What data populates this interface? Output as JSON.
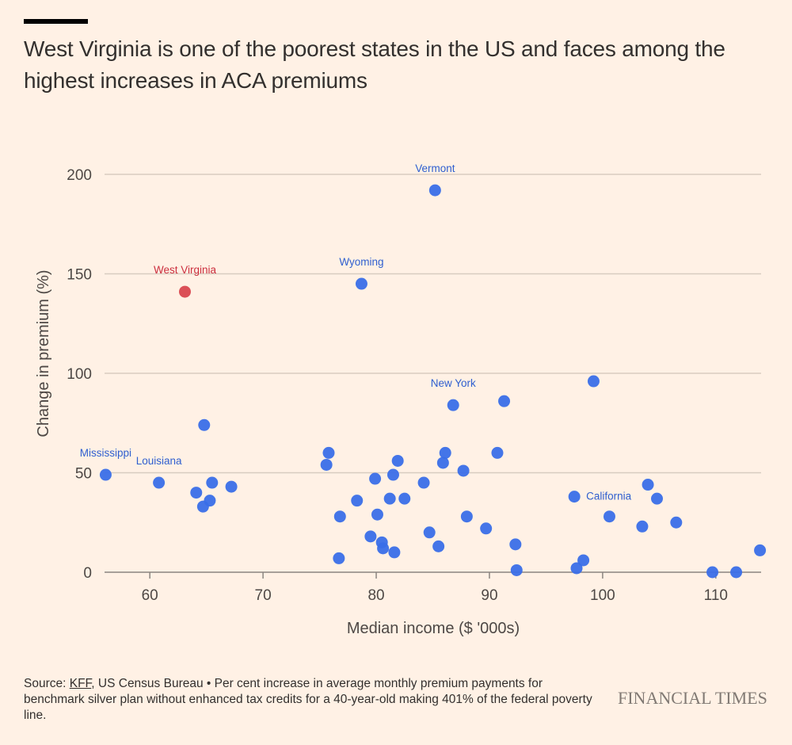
{
  "header": {
    "title": "West Virginia is one of the poorest states in the US and faces among the highest increases in ACA premiums"
  },
  "footer": {
    "source_prefix": "Source: ",
    "source_link": "KFF",
    "source_rest": ", US Census Bureau • Per cent increase in average monthly premium payments for benchmark silver plan without enhanced tax credits for a 40-year-old making 401% of the federal poverty line.",
    "logo": "FINANCIAL TIMES"
  },
  "colors": {
    "background": "#fff1e5",
    "point": "#3a6ee8",
    "highlight": "#d9474f",
    "label_blue": "#2f5fcf",
    "label_red": "#cc2f3e",
    "grid": "#d8ccc0",
    "axis": "#8a8580",
    "text": "#33302e"
  },
  "chart_data": {
    "type": "scatter",
    "title": "West Virginia is one of the poorest states in the US and faces among the highest increases in ACA premiums",
    "xlabel": "Median income ($ '000s)",
    "ylabel": "Change in premium (%)",
    "xlim": [
      56,
      114
    ],
    "ylim": [
      0,
      200
    ],
    "xticks": [
      60,
      70,
      80,
      90,
      100,
      110
    ],
    "yticks": [
      0,
      50,
      100,
      150,
      200
    ],
    "grid": "horizontal",
    "points": [
      {
        "x": 63.1,
        "y": 141,
        "label": "West Virginia",
        "highlight": true
      },
      {
        "x": 85.2,
        "y": 192,
        "label": "Vermont"
      },
      {
        "x": 78.7,
        "y": 145,
        "label": "Wyoming"
      },
      {
        "x": 86.8,
        "y": 84,
        "label": "New York"
      },
      {
        "x": 56.1,
        "y": 49,
        "label": "Mississippi"
      },
      {
        "x": 60.8,
        "y": 45,
        "label": "Louisiana"
      },
      {
        "x": 97.5,
        "y": 38,
        "label": "California"
      },
      {
        "x": 64.8,
        "y": 74
      },
      {
        "x": 65.5,
        "y": 45
      },
      {
        "x": 67.2,
        "y": 43
      },
      {
        "x": 64.1,
        "y": 40
      },
      {
        "x": 65.3,
        "y": 36
      },
      {
        "x": 64.7,
        "y": 33
      },
      {
        "x": 75.8,
        "y": 60
      },
      {
        "x": 75.6,
        "y": 54
      },
      {
        "x": 81.9,
        "y": 56
      },
      {
        "x": 81.5,
        "y": 49
      },
      {
        "x": 79.9,
        "y": 47
      },
      {
        "x": 84.2,
        "y": 45
      },
      {
        "x": 81.2,
        "y": 37
      },
      {
        "x": 82.5,
        "y": 37
      },
      {
        "x": 78.3,
        "y": 36
      },
      {
        "x": 80.1,
        "y": 29
      },
      {
        "x": 76.8,
        "y": 28
      },
      {
        "x": 79.5,
        "y": 18
      },
      {
        "x": 80.5,
        "y": 15
      },
      {
        "x": 80.6,
        "y": 12
      },
      {
        "x": 81.6,
        "y": 10
      },
      {
        "x": 76.7,
        "y": 7
      },
      {
        "x": 84.7,
        "y": 20
      },
      {
        "x": 85.5,
        "y": 13
      },
      {
        "x": 91.3,
        "y": 86
      },
      {
        "x": 86.1,
        "y": 60
      },
      {
        "x": 90.7,
        "y": 60
      },
      {
        "x": 85.9,
        "y": 55
      },
      {
        "x": 87.7,
        "y": 51
      },
      {
        "x": 88.0,
        "y": 28
      },
      {
        "x": 89.7,
        "y": 22
      },
      {
        "x": 92.3,
        "y": 14
      },
      {
        "x": 92.4,
        "y": 1
      },
      {
        "x": 99.2,
        "y": 96
      },
      {
        "x": 104.0,
        "y": 44
      },
      {
        "x": 104.8,
        "y": 37
      },
      {
        "x": 100.6,
        "y": 28
      },
      {
        "x": 103.5,
        "y": 23
      },
      {
        "x": 106.5,
        "y": 25
      },
      {
        "x": 98.3,
        "y": 6
      },
      {
        "x": 97.7,
        "y": 2
      },
      {
        "x": 109.7,
        "y": 0
      },
      {
        "x": 111.8,
        "y": 0
      },
      {
        "x": 113.9,
        "y": 11
      }
    ]
  }
}
